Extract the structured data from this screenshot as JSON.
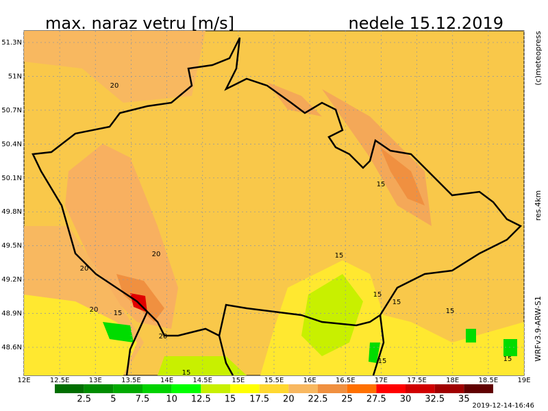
{
  "header": {
    "title": "max. naraz vetru [m/s]",
    "date": "nedele 15.12.2019"
  },
  "side": {
    "copyright": "(c)meteopress",
    "resolution": "res.4km",
    "model": "WRFv3.9-ARW-S1"
  },
  "footer": {
    "timestamp": "2019-12-14-16:46"
  },
  "map": {
    "lat_ticks": [
      {
        "value": 51.3,
        "label": "51.3N"
      },
      {
        "value": 51,
        "label": "51N"
      },
      {
        "value": 50.7,
        "label": "50.7N"
      },
      {
        "value": 50.4,
        "label": "50.4N"
      },
      {
        "value": 50.1,
        "label": "50.1N"
      },
      {
        "value": 49.8,
        "label": "49.8N"
      },
      {
        "value": 49.5,
        "label": "49.5N"
      },
      {
        "value": 49.2,
        "label": "49.2N"
      },
      {
        "value": 48.9,
        "label": "48.9N"
      },
      {
        "value": 48.6,
        "label": "48.6N"
      }
    ],
    "lon_ticks": [
      {
        "value": 12,
        "label": "12E"
      },
      {
        "value": 12.5,
        "label": "12.5E"
      },
      {
        "value": 13,
        "label": "13E"
      },
      {
        "value": 13.5,
        "label": "13.5E"
      },
      {
        "value": 14,
        "label": "14E"
      },
      {
        "value": 14.5,
        "label": "14.5E"
      },
      {
        "value": 15,
        "label": "15E"
      },
      {
        "value": 15.5,
        "label": "15.5E"
      },
      {
        "value": 16,
        "label": "16E"
      },
      {
        "value": 16.5,
        "label": "16.5E"
      },
      {
        "value": 17,
        "label": "17E"
      },
      {
        "value": 17.5,
        "label": "17.5E"
      },
      {
        "value": 18,
        "label": "18E"
      },
      {
        "value": 18.5,
        "label": "18.5E"
      },
      {
        "value": 19,
        "label": "19E"
      }
    ],
    "contour_labels": [
      "20",
      "20",
      "20",
      "20",
      "20",
      "15",
      "15",
      "15",
      "15",
      "15",
      "15",
      "15",
      "15",
      "15"
    ]
  },
  "legend": {
    "levels": [
      2.5,
      5,
      7.5,
      10,
      12.5,
      15,
      17.5,
      20,
      22.5,
      25,
      27.5,
      30,
      32.5,
      35
    ],
    "colors": [
      "#006e00",
      "#008c00",
      "#00aa00",
      "#00d200",
      "#00ff00",
      "#c8f000",
      "#ffff00",
      "#ffd830",
      "#f8b860",
      "#f09040",
      "#ff7000",
      "#ff0000",
      "#d00000",
      "#a00000",
      "#600000"
    ]
  }
}
